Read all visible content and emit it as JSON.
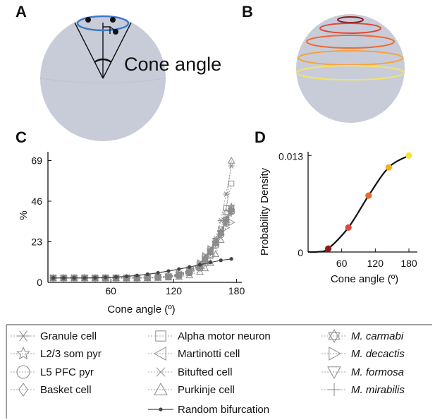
{
  "panels": {
    "a": {
      "letter": "A",
      "annotation": "Cone angle"
    },
    "b": {
      "letter": "B",
      "ring_colors": [
        "#8b1a1a",
        "#e0463a",
        "#ee6a2c",
        "#f5a33a",
        "#f2e36a"
      ]
    },
    "c": {
      "letter": "C"
    },
    "d": {
      "letter": "D"
    }
  },
  "chart_data": [
    {
      "type": "line",
      "xlabel": "Cone angle (º)",
      "ylabel": "%",
      "xlim": [
        0,
        185
      ],
      "ylim": [
        0,
        74
      ],
      "xticks": [
        60,
        120,
        180
      ],
      "yticks": [
        0,
        23,
        46,
        69
      ],
      "xtick_labels": [
        "60",
        "120",
        "180"
      ],
      "ytick_labels": [
        "0",
        "23",
        "46",
        "69"
      ],
      "series": [
        {
          "name": "Granule cell",
          "marker": "asterisk",
          "x": [
            5,
            15,
            25,
            35,
            45,
            55,
            65,
            75,
            85,
            95,
            105,
            115,
            125,
            135,
            145,
            150,
            155,
            160,
            165,
            170,
            175
          ],
          "values": [
            2.5,
            2.5,
            2.5,
            2.5,
            2.5,
            2.5,
            2.5,
            2.5,
            2.5,
            2.6,
            2.8,
            3.0,
            3.5,
            5,
            8,
            12,
            18,
            25,
            35,
            50,
            66
          ]
        },
        {
          "name": "L2/3 som pyr",
          "marker": "star",
          "x": [
            5,
            15,
            25,
            35,
            45,
            55,
            65,
            75,
            85,
            95,
            105,
            115,
            125,
            135,
            145,
            150,
            155,
            160,
            165,
            170,
            175
          ],
          "values": [
            2.5,
            2.5,
            2.5,
            2.5,
            2.5,
            2.5,
            2.5,
            2.5,
            2.5,
            2.6,
            2.8,
            3.2,
            4,
            6,
            9,
            13,
            17,
            22,
            28,
            36,
            43
          ]
        },
        {
          "name": "L5 PFC pyr",
          "marker": "circle",
          "x": [
            5,
            15,
            25,
            35,
            45,
            55,
            65,
            75,
            85,
            95,
            105,
            115,
            125,
            135,
            145,
            150,
            155,
            160,
            165,
            170,
            175
          ],
          "values": [
            2.5,
            2.5,
            2.5,
            2.5,
            2.5,
            2.5,
            2.5,
            2.5,
            2.5,
            2.6,
            2.8,
            3.1,
            3.8,
            5.5,
            8.5,
            12,
            16,
            21,
            27,
            34,
            40
          ]
        },
        {
          "name": "Basket cell",
          "marker": "diamond",
          "x": [
            5,
            15,
            25,
            35,
            45,
            55,
            65,
            75,
            85,
            95,
            105,
            115,
            125,
            135,
            145,
            150,
            155,
            160,
            165,
            170,
            175
          ],
          "values": [
            2.5,
            2.5,
            2.5,
            2.5,
            2.5,
            2.5,
            2.5,
            2.5,
            2.5,
            2.6,
            2.9,
            3.3,
            4.2,
            6,
            9.5,
            13,
            17,
            22,
            28,
            35,
            42
          ]
        },
        {
          "name": "Alpha motor neuron",
          "marker": "square",
          "x": [
            5,
            15,
            25,
            35,
            45,
            55,
            65,
            75,
            85,
            95,
            105,
            115,
            125,
            135,
            145,
            150,
            155,
            160,
            165,
            170,
            175
          ],
          "values": [
            2.5,
            2.5,
            2.5,
            2.5,
            2.5,
            2.5,
            2.5,
            2.5,
            2.5,
            2.6,
            2.8,
            3.2,
            4,
            5.5,
            8,
            11,
            15,
            21,
            30,
            42,
            56
          ]
        },
        {
          "name": "Martinotti cell",
          "marker": "triangle-left",
          "x": [
            5,
            15,
            25,
            35,
            45,
            55,
            65,
            75,
            85,
            95,
            105,
            115,
            125,
            135,
            145,
            150,
            155,
            160,
            165,
            170,
            175
          ],
          "values": [
            2.5,
            2.5,
            2.5,
            2.5,
            2.5,
            2.5,
            2.5,
            2.5,
            2.5,
            2.6,
            2.9,
            3.4,
            4.5,
            6.5,
            10,
            14,
            18,
            23,
            29,
            36,
            42
          ]
        },
        {
          "name": "Bitufted cell",
          "marker": "cross",
          "x": [
            5,
            15,
            25,
            35,
            45,
            55,
            65,
            75,
            85,
            95,
            105,
            115,
            125,
            135,
            145,
            150,
            155,
            160,
            165,
            170,
            175
          ],
          "values": [
            2.5,
            2.5,
            2.5,
            2.5,
            2.5,
            2.5,
            2.5,
            2.5,
            2.5,
            2.7,
            3.0,
            3.6,
            5,
            7,
            11,
            15,
            19,
            24,
            30,
            36,
            41
          ]
        },
        {
          "name": "Purkinje cell",
          "marker": "triangle-up",
          "x": [
            5,
            15,
            25,
            35,
            45,
            55,
            65,
            75,
            85,
            95,
            105,
            115,
            125,
            135,
            145,
            150,
            155,
            160,
            165,
            170,
            175
          ],
          "values": [
            2.5,
            2.5,
            2.5,
            2.5,
            2.5,
            2.5,
            2.5,
            2.5,
            2.5,
            2.5,
            2.6,
            2.8,
            3.2,
            4,
            6,
            8,
            11,
            16,
            24,
            40,
            69
          ]
        },
        {
          "name": "M. carmabi",
          "marker": "hexagram",
          "x": [
            5,
            15,
            25,
            35,
            45,
            55,
            65,
            75,
            85,
            95,
            105,
            115,
            125,
            135,
            145,
            150,
            155,
            160,
            165,
            170,
            175
          ],
          "values": [
            2.5,
            2.5,
            2.5,
            2.5,
            2.5,
            2.5,
            2.5,
            2.5,
            2.5,
            2.6,
            2.9,
            3.3,
            4.3,
            6.2,
            9.5,
            13,
            17,
            22,
            28,
            35,
            41
          ]
        },
        {
          "name": "M. decactis",
          "marker": "triangle-right",
          "x": [
            5,
            15,
            25,
            35,
            45,
            55,
            65,
            75,
            85,
            95,
            105,
            115,
            125,
            135,
            145,
            150,
            155,
            160,
            165,
            170,
            175
          ],
          "values": [
            2.5,
            2.5,
            2.5,
            2.5,
            2.5,
            2.5,
            2.5,
            2.5,
            2.5,
            2.6,
            2.9,
            3.5,
            4.8,
            7,
            11,
            15,
            19,
            23,
            27,
            31,
            34
          ]
        },
        {
          "name": "M. formosa",
          "marker": "triangle-down",
          "x": [
            5,
            15,
            25,
            35,
            45,
            55,
            65,
            75,
            85,
            95,
            105,
            115,
            125,
            135,
            145,
            150,
            155,
            160,
            165,
            170,
            175
          ],
          "values": [
            2.5,
            2.5,
            2.5,
            2.5,
            2.5,
            2.5,
            2.5,
            2.5,
            2.5,
            2.6,
            2.9,
            3.3,
            4.4,
            6.4,
            9.8,
            13.5,
            17.5,
            22,
            28,
            34,
            40
          ]
        },
        {
          "name": "M. mirabilis",
          "marker": "plus",
          "x": [
            5,
            15,
            25,
            35,
            45,
            55,
            65,
            75,
            85,
            95,
            105,
            115,
            125,
            135,
            145,
            150,
            155,
            160,
            165,
            170,
            175
          ],
          "values": [
            2.5,
            2.5,
            2.5,
            2.5,
            2.5,
            2.5,
            2.5,
            2.5,
            2.5,
            2.6,
            2.9,
            3.4,
            4.6,
            6.8,
            10.5,
            14,
            18,
            22,
            27,
            33,
            39
          ]
        },
        {
          "name": "Random bifurcation",
          "marker": "dot",
          "x": [
            5,
            15,
            25,
            35,
            45,
            55,
            65,
            75,
            85,
            95,
            105,
            115,
            125,
            135,
            145,
            155,
            165,
            175
          ],
          "values": [
            2.5,
            2.5,
            2.5,
            2.5,
            2.6,
            2.8,
            3.0,
            3.4,
            3.9,
            4.6,
            5.4,
            6.4,
            7.5,
            8.7,
            10,
            11.3,
            12.5,
            13.3
          ]
        }
      ]
    },
    {
      "type": "line",
      "xlabel": "Cone angle (º)",
      "ylabel": "Probability Density",
      "xlim": [
        0,
        180
      ],
      "ylim": [
        0,
        0.0135
      ],
      "xticks": [
        60,
        120,
        180
      ],
      "yticks": [
        0,
        0.013
      ],
      "xtick_labels": [
        "60",
        "120",
        "180"
      ],
      "ytick_labels": [
        "0",
        "0.013"
      ],
      "points": [
        {
          "x": 36,
          "y": 0.00045,
          "color": "#8b1a1a"
        },
        {
          "x": 72,
          "y": 0.0033,
          "color": "#e0463a"
        },
        {
          "x": 108,
          "y": 0.0076,
          "color": "#ee6a2c"
        },
        {
          "x": 144,
          "y": 0.0114,
          "color": "#f5b020"
        },
        {
          "x": 180,
          "y": 0.013,
          "color": "#f6e43a"
        }
      ]
    }
  ]
}
